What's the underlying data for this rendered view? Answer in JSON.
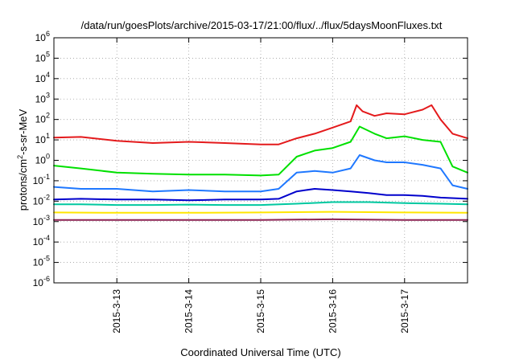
{
  "chart_data": {
    "type": "line",
    "title": "/data/run/goesPlots/archive/2015-03-17/21:00/flux/../flux/5daysMoonFluxes.txt",
    "xlabel": "Coordinated Universal Time (UTC)",
    "ylabel_parts": [
      "protons/cm",
      "2",
      "-s-sr-MeV"
    ],
    "y_scale": "log",
    "ylim": [
      1e-06,
      1000000.0
    ],
    "xlim": [
      "2015-03-12T03:00",
      "2015-03-17T21:00"
    ],
    "grid": true,
    "legend": "none",
    "x_ticks": [
      {
        "date": "2015-03-13",
        "label": "2015-3-13"
      },
      {
        "date": "2015-03-14",
        "label": "2015-3-14"
      },
      {
        "date": "2015-03-15",
        "label": "2015-3-15"
      },
      {
        "date": "2015-03-16",
        "label": "2015-3-16"
      },
      {
        "date": "2015-03-17",
        "label": "2015-3-17"
      }
    ],
    "y_ticks": [
      {
        "value": 1e-06,
        "base": "10",
        "exp": "-6"
      },
      {
        "value": 1e-05,
        "base": "10",
        "exp": "-5"
      },
      {
        "value": 0.0001,
        "base": "10",
        "exp": "-4"
      },
      {
        "value": 0.001,
        "base": "10",
        "exp": "-3"
      },
      {
        "value": 0.01,
        "base": "10",
        "exp": "-2"
      },
      {
        "value": 0.1,
        "base": "10",
        "exp": "-1"
      },
      {
        "value": 1,
        "base": "10",
        "exp": "0"
      },
      {
        "value": 10,
        "base": "10",
        "exp": "1"
      },
      {
        "value": 100,
        "base": "10",
        "exp": "2"
      },
      {
        "value": 1000,
        "base": "10",
        "exp": "3"
      },
      {
        "value": 10000,
        "base": "10",
        "exp": "4"
      },
      {
        "value": 100000,
        "base": "10",
        "exp": "5"
      },
      {
        "value": 1000000,
        "base": "10",
        "exp": "6"
      }
    ],
    "series": [
      {
        "color": "#e41a1c",
        "x": [
          "2015-03-12T03:00",
          "2015-03-12T12:00",
          "2015-03-13T00:00",
          "2015-03-13T12:00",
          "2015-03-14T00:00",
          "2015-03-14T12:00",
          "2015-03-15T00:00",
          "2015-03-15T06:00",
          "2015-03-15T12:00",
          "2015-03-15T18:00",
          "2015-03-16T00:00",
          "2015-03-16T06:00",
          "2015-03-16T08:00",
          "2015-03-16T10:00",
          "2015-03-16T14:00",
          "2015-03-16T18:00",
          "2015-03-17T00:00",
          "2015-03-17T06:00",
          "2015-03-17T09:00",
          "2015-03-17T12:00",
          "2015-03-17T16:00",
          "2015-03-17T21:00"
        ],
        "y": [
          13,
          14,
          9,
          7,
          8,
          7,
          6,
          6,
          12,
          20,
          40,
          80,
          500,
          250,
          150,
          200,
          180,
          300,
          500,
          100,
          20,
          12
        ]
      },
      {
        "color": "#00e000",
        "x": [
          "2015-03-12T03:00",
          "2015-03-12T12:00",
          "2015-03-13T00:00",
          "2015-03-13T12:00",
          "2015-03-14T00:00",
          "2015-03-14T12:00",
          "2015-03-15T00:00",
          "2015-03-15T06:00",
          "2015-03-15T12:00",
          "2015-03-15T18:00",
          "2015-03-16T00:00",
          "2015-03-16T06:00",
          "2015-03-16T09:00",
          "2015-03-16T14:00",
          "2015-03-16T18:00",
          "2015-03-17T00:00",
          "2015-03-17T06:00",
          "2015-03-17T12:00",
          "2015-03-17T16:00",
          "2015-03-17T21:00"
        ],
        "y": [
          0.55,
          0.4,
          0.25,
          0.22,
          0.2,
          0.2,
          0.18,
          0.2,
          1.5,
          3,
          4,
          8,
          45,
          20,
          12,
          15,
          10,
          8,
          0.5,
          0.25
        ]
      },
      {
        "color": "#1f78ff",
        "x": [
          "2015-03-12T03:00",
          "2015-03-12T12:00",
          "2015-03-13T00:00",
          "2015-03-13T12:00",
          "2015-03-14T00:00",
          "2015-03-14T12:00",
          "2015-03-15T00:00",
          "2015-03-15T06:00",
          "2015-03-15T12:00",
          "2015-03-15T18:00",
          "2015-03-16T00:00",
          "2015-03-16T06:00",
          "2015-03-16T09:00",
          "2015-03-16T14:00",
          "2015-03-16T18:00",
          "2015-03-17T00:00",
          "2015-03-17T06:00",
          "2015-03-17T12:00",
          "2015-03-17T16:00",
          "2015-03-17T21:00"
        ],
        "y": [
          0.05,
          0.04,
          0.04,
          0.03,
          0.035,
          0.03,
          0.03,
          0.04,
          0.25,
          0.3,
          0.25,
          0.4,
          1.8,
          1.0,
          0.8,
          0.8,
          0.6,
          0.4,
          0.06,
          0.04
        ]
      },
      {
        "color": "#0000cc",
        "x": [
          "2015-03-12T03:00",
          "2015-03-12T12:00",
          "2015-03-13T00:00",
          "2015-03-13T12:00",
          "2015-03-14T00:00",
          "2015-03-14T12:00",
          "2015-03-15T00:00",
          "2015-03-15T06:00",
          "2015-03-15T12:00",
          "2015-03-15T18:00",
          "2015-03-16T00:00",
          "2015-03-16T06:00",
          "2015-03-16T12:00",
          "2015-03-16T18:00",
          "2015-03-17T00:00",
          "2015-03-17T06:00",
          "2015-03-17T12:00",
          "2015-03-17T21:00"
        ],
        "y": [
          0.012,
          0.013,
          0.012,
          0.012,
          0.011,
          0.012,
          0.012,
          0.013,
          0.03,
          0.04,
          0.035,
          0.03,
          0.025,
          0.02,
          0.02,
          0.018,
          0.015,
          0.013
        ]
      },
      {
        "color": "#00c8a0",
        "x": [
          "2015-03-12T03:00",
          "2015-03-12T12:00",
          "2015-03-13T00:00",
          "2015-03-13T12:00",
          "2015-03-14T00:00",
          "2015-03-14T12:00",
          "2015-03-15T00:00",
          "2015-03-15T12:00",
          "2015-03-16T00:00",
          "2015-03-16T12:00",
          "2015-03-17T00:00",
          "2015-03-17T12:00",
          "2015-03-17T21:00"
        ],
        "y": [
          0.007,
          0.007,
          0.0065,
          0.0065,
          0.0068,
          0.0065,
          0.0065,
          0.0075,
          0.009,
          0.009,
          0.008,
          0.0075,
          0.007
        ]
      },
      {
        "color": "#ffe600",
        "x": [
          "2015-03-12T03:00",
          "2015-03-13T00:00",
          "2015-03-14T00:00",
          "2015-03-15T00:00",
          "2015-03-16T00:00",
          "2015-03-17T00:00",
          "2015-03-17T21:00"
        ],
        "y": [
          0.0028,
          0.0027,
          0.0027,
          0.0028,
          0.003,
          0.0028,
          0.0027
        ]
      },
      {
        "color": "#8b2252",
        "x": [
          "2015-03-12T03:00",
          "2015-03-13T00:00",
          "2015-03-14T00:00",
          "2015-03-15T00:00",
          "2015-03-16T00:00",
          "2015-03-17T00:00",
          "2015-03-17T21:00"
        ],
        "y": [
          0.0012,
          0.0012,
          0.0012,
          0.0012,
          0.0013,
          0.0012,
          0.0012
        ]
      }
    ]
  }
}
